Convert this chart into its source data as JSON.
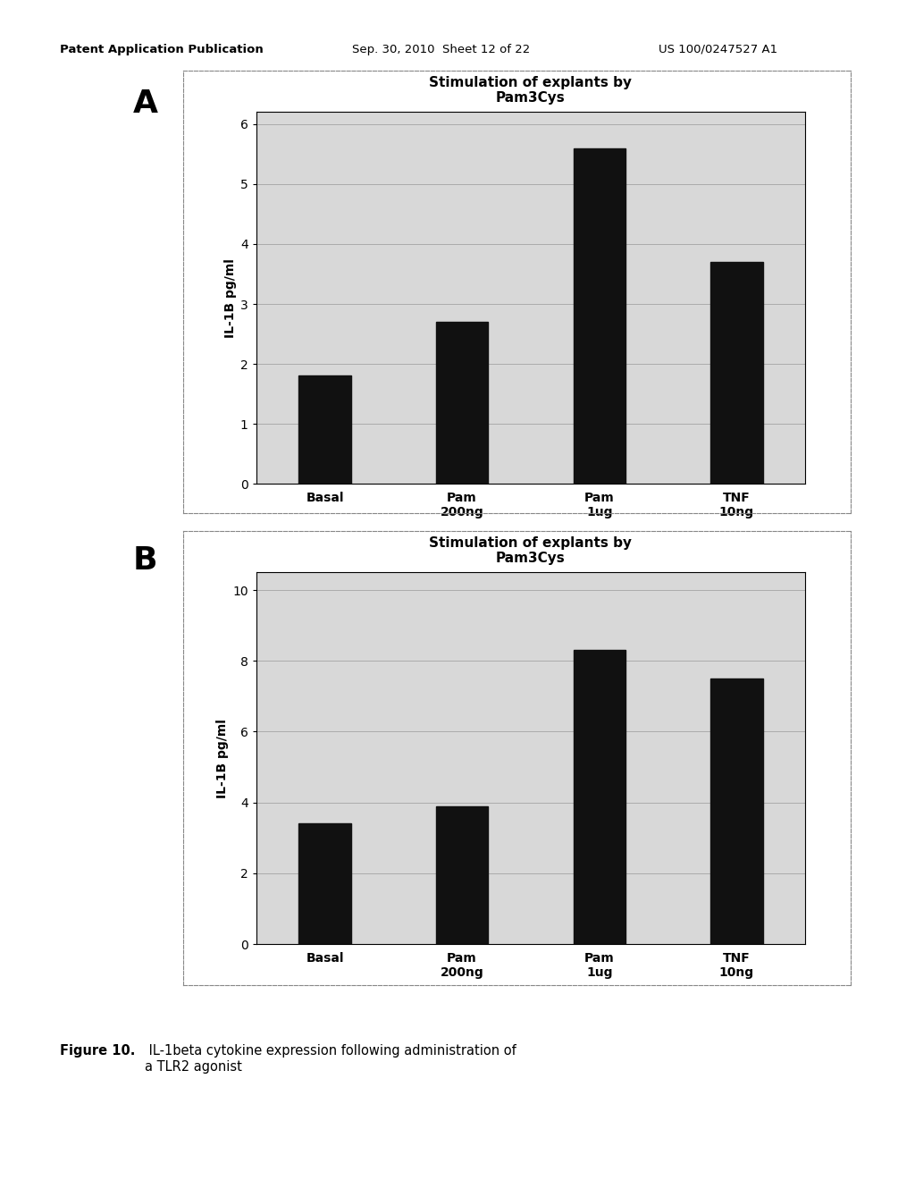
{
  "panel_A": {
    "title_line1": "Stimulation of explants by",
    "title_line2": "Pam3Cys",
    "categories": [
      "Basal",
      "Pam\n200ng",
      "Pam\n1ug",
      "TNF\n10ng"
    ],
    "values": [
      1.8,
      2.7,
      5.6,
      3.7
    ],
    "ylabel": "IL-1B pg/ml",
    "ylim": [
      0,
      6.2
    ],
    "yticks": [
      0,
      1,
      2,
      3,
      4,
      5,
      6
    ],
    "bar_color": "#111111",
    "bg_color": "#d8d8d8"
  },
  "panel_B": {
    "title_line1": "Stimulation of explants by",
    "title_line2": "Pam3Cys",
    "categories": [
      "Basal",
      "Pam\n200ng",
      "Pam\n1ug",
      "TNF\n10ng"
    ],
    "values": [
      3.4,
      3.9,
      8.3,
      7.5
    ],
    "ylabel": "IL-1B pg/ml",
    "ylim": [
      0,
      10.5
    ],
    "yticks": [
      0,
      2,
      4,
      6,
      8,
      10
    ],
    "bar_color": "#111111",
    "bg_color": "#d8d8d8"
  },
  "header_left": "Patent Application Publication",
  "header_center": "Sep. 30, 2010  Sheet 12 of 22",
  "header_right": "US 100/0247527 A1",
  "caption_bold": "Figure 10.",
  "caption_normal": " IL-1beta cytokine expression following administration of\na TLR2 agonist",
  "page_bg": "#ffffff",
  "label_A": "A",
  "label_B": "B"
}
